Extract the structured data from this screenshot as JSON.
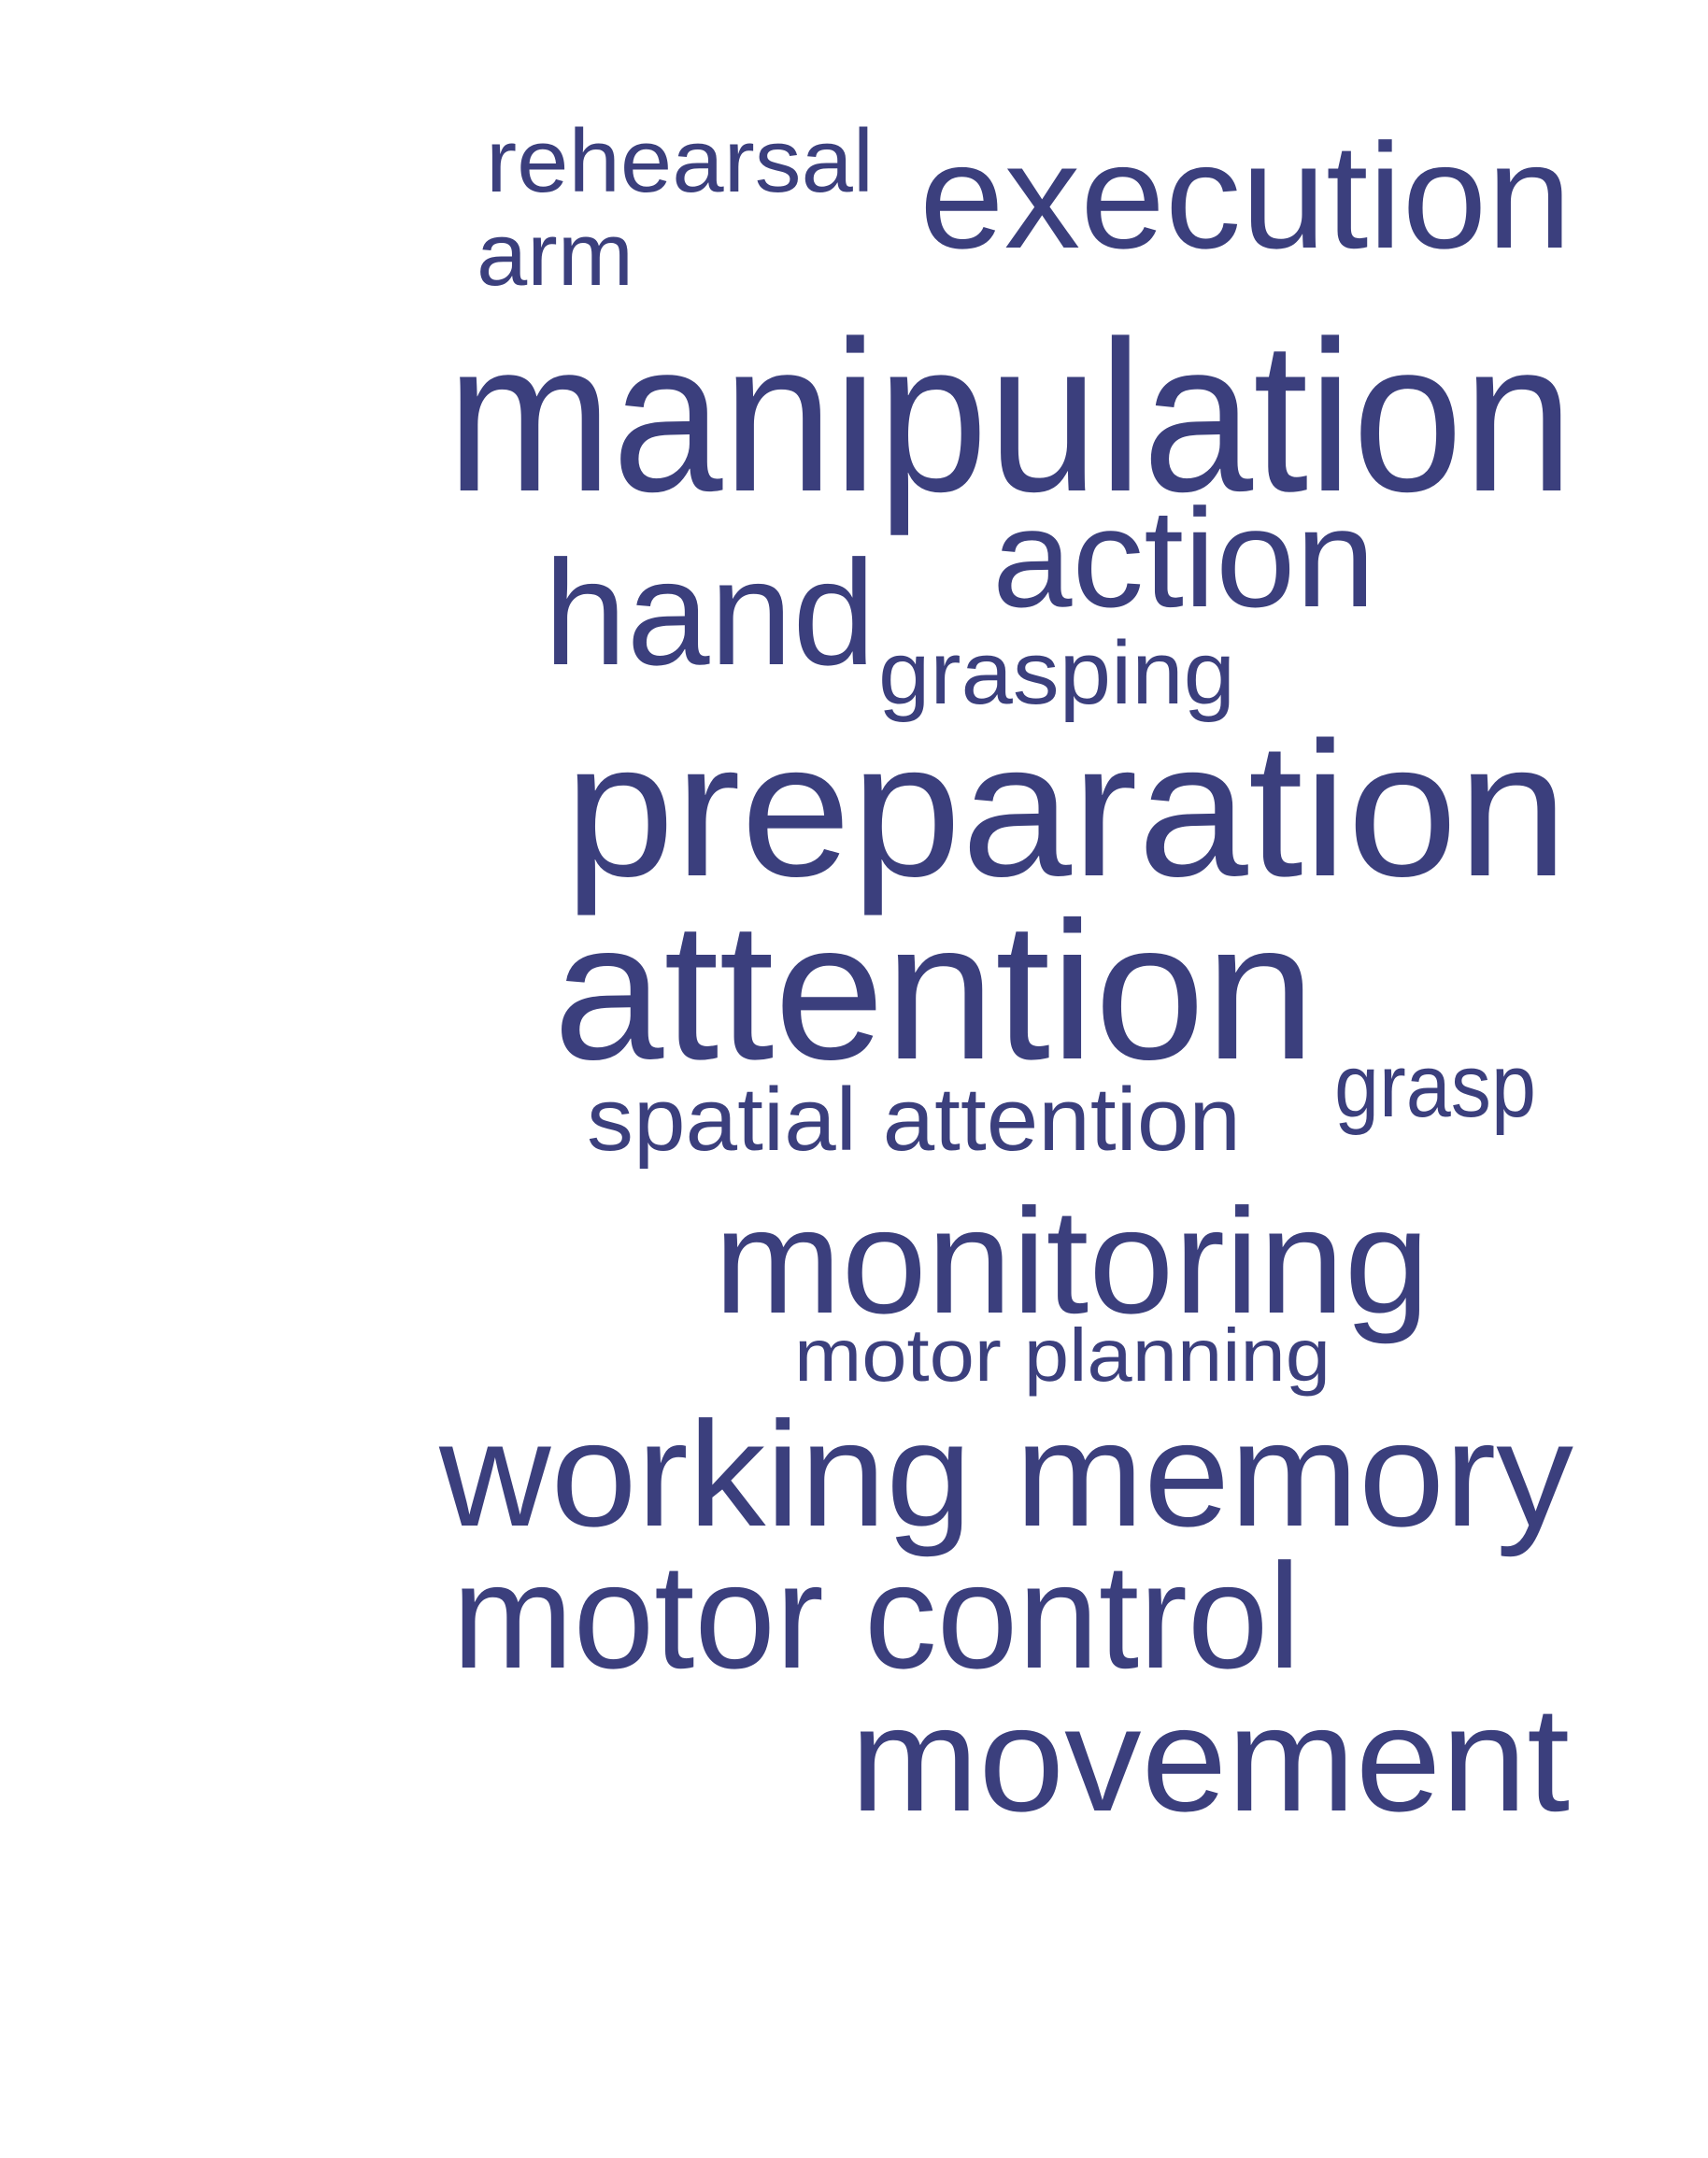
{
  "colors": {
    "background": "#ffffff",
    "word": "#3b3f7d"
  },
  "words": [
    "rehearsal",
    "execution",
    "arm",
    "manipulation",
    "action",
    "hand",
    "grasping",
    "preparation",
    "attention",
    "grasp",
    "spatial attention",
    "monitoring",
    "motor planning",
    "working memory",
    "motor control",
    "movement"
  ]
}
